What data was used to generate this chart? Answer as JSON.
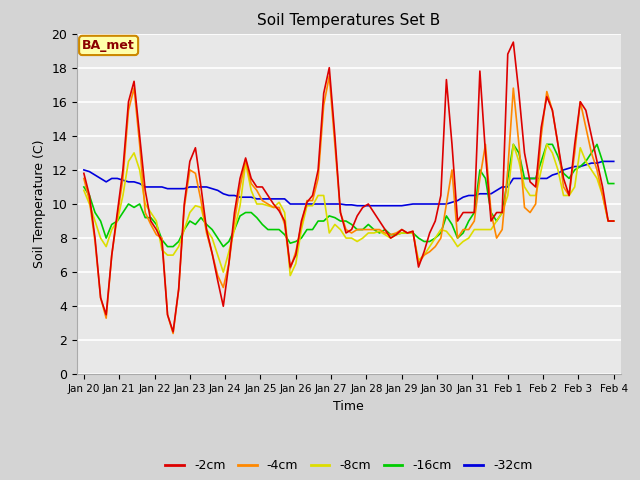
{
  "title": "Soil Temperatures Set B",
  "xlabel": "Time",
  "ylabel": "Soil Temperature (C)",
  "annotation": "BA_met",
  "ylim": [
    0,
    20
  ],
  "fig_facecolor": "#d4d4d4",
  "ax_facecolor": "#e8e8e8",
  "colors": {
    "-2cm": "#dd0000",
    "-4cm": "#ff8800",
    "-8cm": "#dddd00",
    "-16cm": "#00cc00",
    "-32cm": "#0000dd"
  },
  "x_labels": [
    "Jan 20",
    "Jan 21",
    "Jan 22",
    "Jan 23",
    "Jan 24",
    "Jan 25",
    "Jan 26",
    "Jan 27",
    "Jan 28",
    "Jan 29",
    "Jan 30",
    "Jan 31",
    "Feb 1",
    "Feb 2",
    "Feb 3",
    "Feb 4"
  ],
  "n_days": 16,
  "pts_per_day": 6,
  "series": {
    "-2cm": [
      11.8,
      10.5,
      8.0,
      4.5,
      3.5,
      7.0,
      9.5,
      12.0,
      16.0,
      17.2,
      14.0,
      10.8,
      9.0,
      8.5,
      7.8,
      3.5,
      2.5,
      5.0,
      10.0,
      12.5,
      13.3,
      11.0,
      8.5,
      7.1,
      5.5,
      4.0,
      6.5,
      9.5,
      11.5,
      12.7,
      11.5,
      11.0,
      11.0,
      10.5,
      10.0,
      9.6,
      9.0,
      6.3,
      7.0,
      9.0,
      10.1,
      10.5,
      12.0,
      16.5,
      18.0,
      14.0,
      9.5,
      8.3,
      8.5,
      9.3,
      9.8,
      10.0,
      9.5,
      9.0,
      8.5,
      8.0,
      8.2,
      8.5,
      8.3,
      8.4,
      6.3,
      7.2,
      8.3,
      9.0,
      10.5,
      17.3,
      13.5,
      9.0,
      9.5,
      9.5,
      9.5,
      17.8,
      13.0,
      9.0,
      9.5,
      9.5,
      18.8,
      19.5,
      16.5,
      13.0,
      11.3,
      11.0,
      14.5,
      16.3,
      15.5,
      13.5,
      11.5,
      10.5,
      13.5,
      16.0,
      15.5,
      14.0,
      12.5,
      11.0,
      9.0,
      9.0
    ],
    "-4cm": [
      11.5,
      10.2,
      7.8,
      4.5,
      3.3,
      7.0,
      9.3,
      11.5,
      15.5,
      16.8,
      13.5,
      9.5,
      8.8,
      8.2,
      8.0,
      3.5,
      2.4,
      5.0,
      9.8,
      12.0,
      11.8,
      10.2,
      8.3,
      7.1,
      5.8,
      5.1,
      6.5,
      9.0,
      11.0,
      12.6,
      11.2,
      10.8,
      10.2,
      10.0,
      9.8,
      9.8,
      8.8,
      6.2,
      7.2,
      8.8,
      10.2,
      10.2,
      11.5,
      15.8,
      17.5,
      13.5,
      9.5,
      8.5,
      8.3,
      8.5,
      8.5,
      8.5,
      8.5,
      8.5,
      8.3,
      8.2,
      8.3,
      8.5,
      8.3,
      8.4,
      6.5,
      7.0,
      7.2,
      7.5,
      8.0,
      10.0,
      12.0,
      8.0,
      8.5,
      8.5,
      9.0,
      11.5,
      13.5,
      9.5,
      8.0,
      8.5,
      12.0,
      16.8,
      13.5,
      9.8,
      9.5,
      10.0,
      14.0,
      16.6,
      15.5,
      13.5,
      11.0,
      10.5,
      13.0,
      16.0,
      14.5,
      13.0,
      12.0,
      10.5,
      9.0,
      9.0
    ],
    "-8cm": [
      10.8,
      10.0,
      9.0,
      8.0,
      7.5,
      8.5,
      9.0,
      10.5,
      12.5,
      13.0,
      12.0,
      10.0,
      9.5,
      9.0,
      7.3,
      7.0,
      7.0,
      7.5,
      8.5,
      9.5,
      9.9,
      9.8,
      8.5,
      8.0,
      7.0,
      6.0,
      7.2,
      8.5,
      9.9,
      12.4,
      10.8,
      10.0,
      10.0,
      9.9,
      9.8,
      10.1,
      9.5,
      5.8,
      6.5,
      8.5,
      9.9,
      9.9,
      10.5,
      10.5,
      8.3,
      8.8,
      8.5,
      8.0,
      8.0,
      7.8,
      8.0,
      8.3,
      8.3,
      8.4,
      8.2,
      8.0,
      8.2,
      8.3,
      8.3,
      8.3,
      6.7,
      7.0,
      7.5,
      8.0,
      8.5,
      8.4,
      8.0,
      7.5,
      7.8,
      8.0,
      8.5,
      8.5,
      8.5,
      8.5,
      9.0,
      9.5,
      10.5,
      13.5,
      12.5,
      11.0,
      10.5,
      10.5,
      12.0,
      13.5,
      13.0,
      12.0,
      10.5,
      10.5,
      11.0,
      13.3,
      12.5,
      12.0,
      11.5,
      10.5,
      9.0,
      9.0
    ],
    "-16cm": [
      11.0,
      10.5,
      9.5,
      9.0,
      8.0,
      8.8,
      9.0,
      9.5,
      10.0,
      9.8,
      10.0,
      9.2,
      9.2,
      8.8,
      7.9,
      7.5,
      7.5,
      7.8,
      8.5,
      9.0,
      8.8,
      9.2,
      8.8,
      8.5,
      8.0,
      7.5,
      7.8,
      8.5,
      9.3,
      9.5,
      9.5,
      9.2,
      8.8,
      8.5,
      8.5,
      8.5,
      8.2,
      7.7,
      7.8,
      8.0,
      8.5,
      8.5,
      9.0,
      9.0,
      9.3,
      9.2,
      9.0,
      9.0,
      8.8,
      8.5,
      8.5,
      8.8,
      8.5,
      8.3,
      8.5,
      8.2,
      8.2,
      8.3,
      8.3,
      8.3,
      8.0,
      7.8,
      7.8,
      8.0,
      8.3,
      9.3,
      8.8,
      8.0,
      8.3,
      9.0,
      9.5,
      12.0,
      11.5,
      9.5,
      9.0,
      9.5,
      11.5,
      13.5,
      13.0,
      11.5,
      11.5,
      11.5,
      12.5,
      13.5,
      13.5,
      12.8,
      11.8,
      11.5,
      12.0,
      12.2,
      12.5,
      13.0,
      13.5,
      12.5,
      11.2,
      11.2
    ],
    "-32cm": [
      12.0,
      11.9,
      11.7,
      11.5,
      11.3,
      11.5,
      11.5,
      11.4,
      11.3,
      11.3,
      11.2,
      11.0,
      11.0,
      11.0,
      11.0,
      10.9,
      10.9,
      10.9,
      10.9,
      11.0,
      11.0,
      11.0,
      11.0,
      10.9,
      10.8,
      10.6,
      10.5,
      10.5,
      10.4,
      10.4,
      10.4,
      10.3,
      10.3,
      10.3,
      10.3,
      10.3,
      10.3,
      10.0,
      10.0,
      10.0,
      10.0,
      10.0,
      10.0,
      10.0,
      10.0,
      10.0,
      10.0,
      9.95,
      9.95,
      9.9,
      9.9,
      9.9,
      9.9,
      9.9,
      9.9,
      9.9,
      9.9,
      9.9,
      9.95,
      10.0,
      10.0,
      10.0,
      10.0,
      10.0,
      10.0,
      10.0,
      10.1,
      10.2,
      10.4,
      10.5,
      10.5,
      10.6,
      10.6,
      10.6,
      10.8,
      11.0,
      11.0,
      11.5,
      11.5,
      11.5,
      11.5,
      11.5,
      11.5,
      11.5,
      11.7,
      11.8,
      12.0,
      12.1,
      12.2,
      12.2,
      12.3,
      12.4,
      12.4,
      12.5,
      12.5,
      12.5
    ]
  }
}
